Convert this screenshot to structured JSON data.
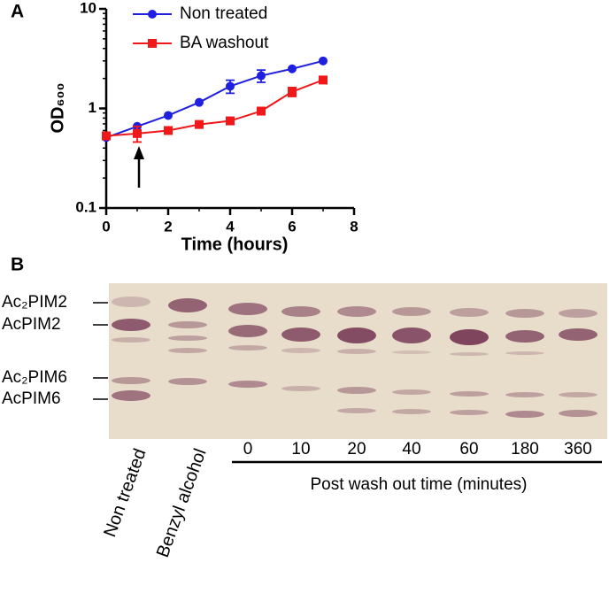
{
  "chart_data": {
    "type": "line",
    "xlabel": "Time (hours)",
    "ylabel": "OD₆₀₀",
    "x": [
      0,
      1,
      2,
      3,
      4,
      5,
      6,
      7
    ],
    "series": [
      {
        "name": "Non treated",
        "color": "#1f1fe0",
        "marker": "circle",
        "values": [
          0.51,
          0.66,
          0.85,
          1.15,
          1.67,
          2.13,
          2.5,
          3.0
        ],
        "errors": [
          null,
          null,
          null,
          null,
          0.25,
          0.3,
          null,
          null
        ]
      },
      {
        "name": "BA washout",
        "color": "#f01818",
        "marker": "square",
        "values": [
          0.53,
          0.56,
          0.6,
          0.69,
          0.75,
          0.94,
          1.47,
          1.93
        ],
        "errors": [
          null,
          0.1,
          null,
          null,
          null,
          null,
          0.15,
          null
        ]
      }
    ],
    "xlim": [
      0,
      8
    ],
    "xticks": [
      0,
      2,
      4,
      6,
      8
    ],
    "ylim": [
      0.1,
      10
    ],
    "yticks": [
      0.1,
      1,
      10
    ],
    "ylog": true
  },
  "panel_labels": [
    "A",
    "B"
  ],
  "tlc": {
    "band_labels": [
      "Ac₂PIM2",
      "AcPIM2",
      "Ac₂PIM6",
      "AcPIM6"
    ],
    "lane_labels": [
      "Non treated",
      "Benzyl alcohol"
    ],
    "time_labels": [
      0,
      10,
      20,
      40,
      60,
      180,
      360
    ],
    "time_axis_label": "Post wash out time (minutes)"
  }
}
